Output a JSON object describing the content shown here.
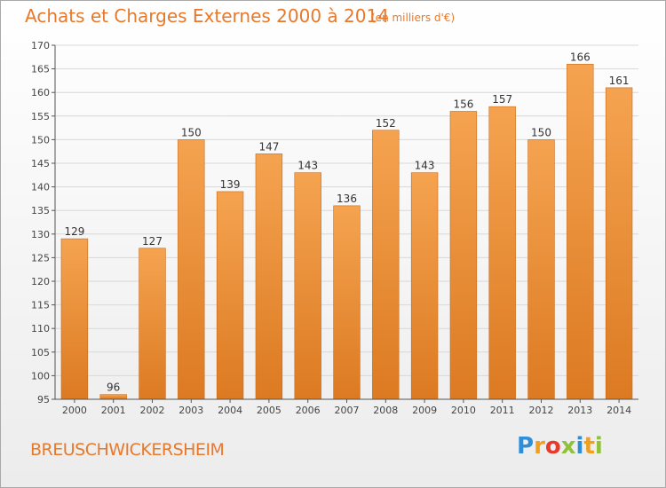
{
  "title": "Achats et Charges Externes 2000 à 2014",
  "subtitle": "(en milliers d'€)",
  "commune": "BREUSCHWICKERSHEIM",
  "logo": {
    "letters": [
      "P",
      "r",
      "o",
      "x",
      "i",
      "t",
      "i"
    ],
    "colors": [
      "#2e8fd8",
      "#f0a020",
      "#e83a2a",
      "#8fc23a",
      "#2e8fd8",
      "#f0a020",
      "#8fc23a"
    ]
  },
  "colors": {
    "bar_top": "#f5a350",
    "bar_bottom": "#dc7a22",
    "accent": "#e8792a",
    "grid": "#d8d8d8",
    "axis": "#555555"
  },
  "chart_data": {
    "type": "bar",
    "title": "Achats et Charges Externes 2000 à 2014",
    "subtitle": "(en milliers d'€)",
    "categories": [
      "2000",
      "2001",
      "2002",
      "2003",
      "2004",
      "2005",
      "2006",
      "2007",
      "2008",
      "2009",
      "2010",
      "2011",
      "2012",
      "2013",
      "2014"
    ],
    "values": [
      129,
      96,
      127,
      150,
      139,
      147,
      143,
      136,
      152,
      143,
      156,
      157,
      150,
      166,
      161
    ],
    "ylim": [
      95,
      170
    ],
    "yticks": [
      95,
      100,
      105,
      110,
      115,
      120,
      125,
      130,
      135,
      140,
      145,
      150,
      155,
      160,
      165,
      170
    ],
    "grid": true,
    "xlabel": "",
    "ylabel": ""
  }
}
